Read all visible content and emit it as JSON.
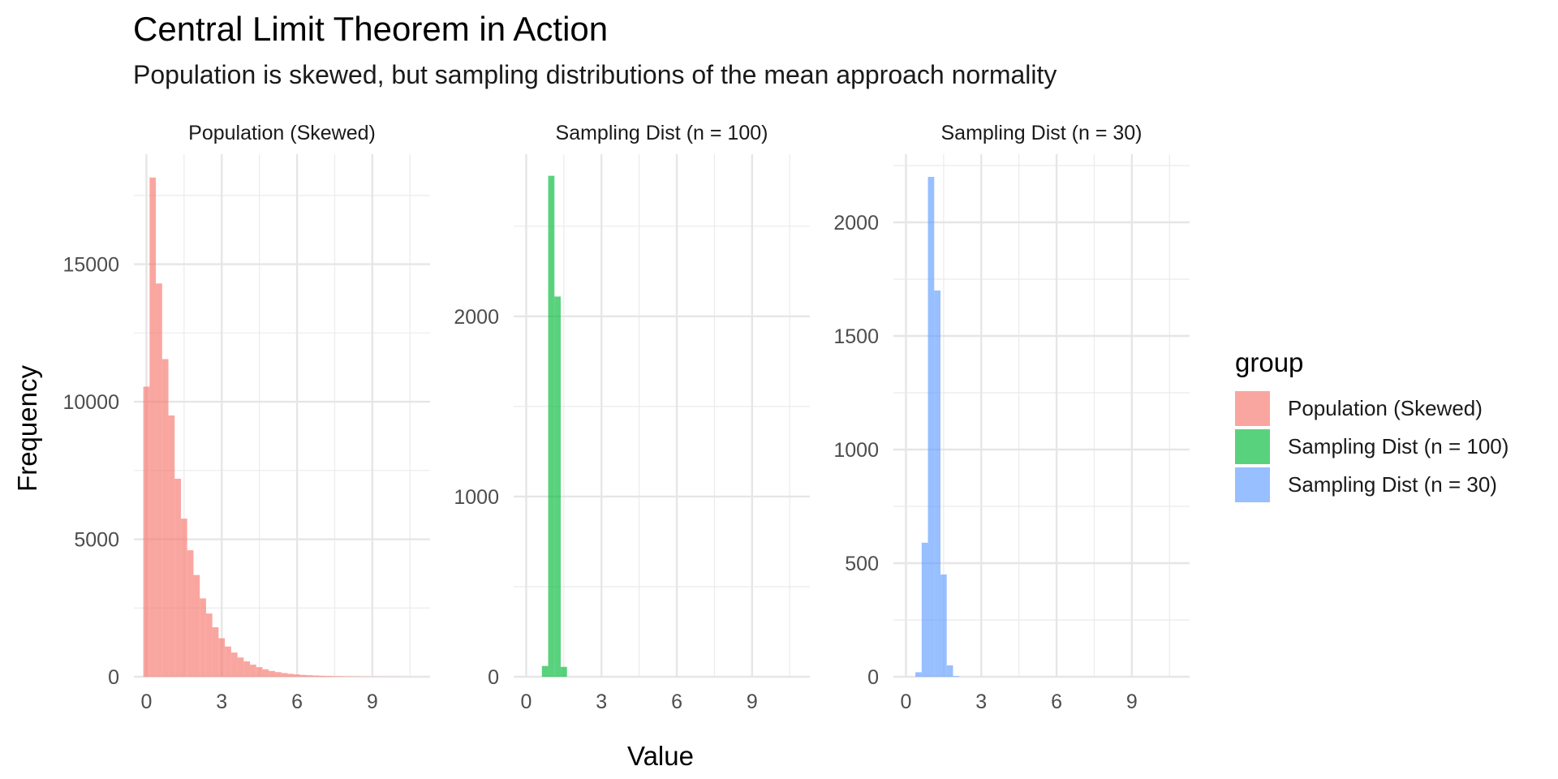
{
  "title": "Central Limit Theorem in Action",
  "subtitle": "Population is skewed, but sampling distributions of the mean approach normality",
  "legend": {
    "title": "group",
    "items": [
      {
        "label": "Population (Skewed)",
        "color": "#F8766D"
      },
      {
        "label": "Sampling Dist (n = 100)",
        "color": "#00BA38"
      },
      {
        "label": "Sampling Dist (n = 30)",
        "color": "#619CFF"
      }
    ]
  },
  "chart_data": {
    "type": "bar",
    "xlabel": "Value",
    "ylabel": "Frequency",
    "xlim": [
      -0.5,
      11.3
    ],
    "xticks": [
      0,
      3,
      6,
      9
    ],
    "grid": true,
    "legend_position": "right",
    "bin_width": 0.25,
    "panels": [
      {
        "strip": "Population (Skewed)",
        "color": "#F8766D",
        "ylim": [
          0,
          19000
        ],
        "yticks": [
          0,
          5000,
          10000,
          15000
        ],
        "bin_start": -0.125,
        "values": [
          10550,
          18150,
          14300,
          11550,
          9500,
          7200,
          5750,
          4600,
          3700,
          2850,
          2300,
          1800,
          1400,
          1100,
          880,
          700,
          560,
          440,
          350,
          270,
          210,
          170,
          135,
          105,
          85,
          68,
          55,
          44,
          35,
          28,
          22,
          18,
          14,
          11,
          9,
          7,
          5,
          4,
          3,
          2,
          2,
          1,
          1
        ]
      },
      {
        "strip": "Sampling Dist (n = 100)",
        "color": "#00BA38",
        "ylim": [
          0,
          2900
        ],
        "yticks": [
          0,
          1000,
          2000
        ],
        "bin_start": 0.625,
        "values": [
          60,
          2780,
          2110,
          55
        ]
      },
      {
        "strip": "Sampling Dist (n = 30)",
        "color": "#619CFF",
        "ylim": [
          0,
          2300
        ],
        "yticks": [
          0,
          500,
          1000,
          1500,
          2000
        ],
        "bin_start": 0.375,
        "values": [
          20,
          590,
          2200,
          1700,
          450,
          50,
          3
        ]
      }
    ]
  }
}
